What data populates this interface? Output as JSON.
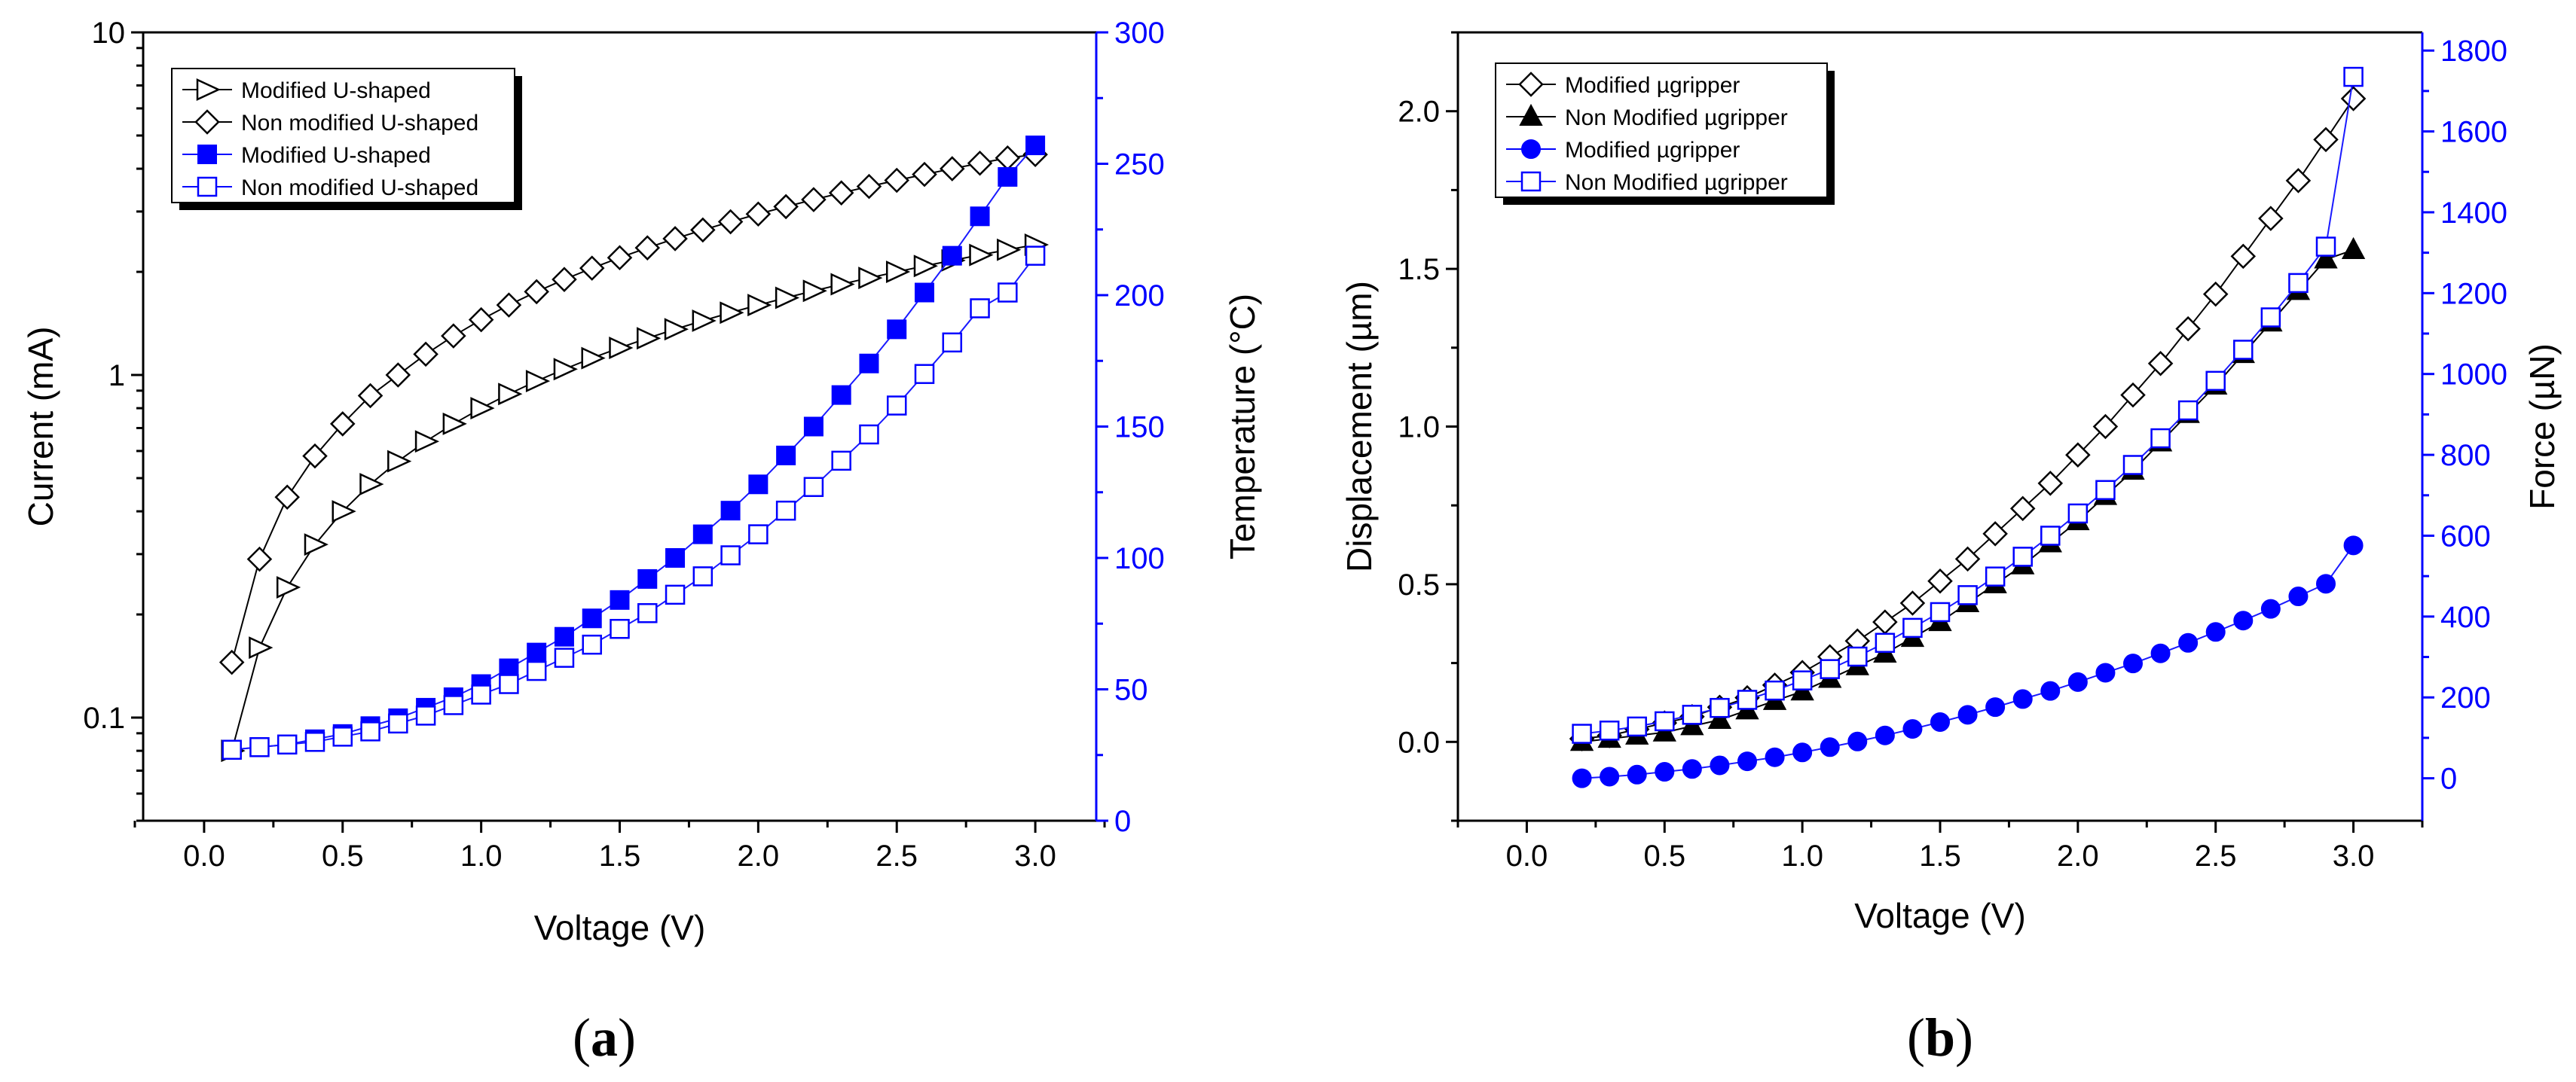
{
  "colors": {
    "black": "#000000",
    "blue": "#0000ff",
    "blue_line": "#1a1aff"
  },
  "chart_data": [
    {
      "panel": "(a)",
      "panel_label": {
        "pre": "(",
        "letter": "a",
        "post": ")"
      },
      "type": "line",
      "xlabel": "Voltage (V)",
      "ylabel": "Current (mA)",
      "y2label": "Temperature (°C)",
      "xlim": [
        -0.22,
        3.22
      ],
      "ylim_log": [
        0.05,
        10
      ],
      "y2lim": [
        0,
        300
      ],
      "x_ticks": [
        "0.0",
        "0.5",
        "1.0",
        "1.5",
        "2.0",
        "2.5",
        "3.0"
      ],
      "y_ticks": [
        "0.1",
        "1",
        "10"
      ],
      "y2_ticks": [
        "0",
        "50",
        "100",
        "150",
        "200",
        "250",
        "300"
      ],
      "legend_position": "top-left",
      "series": [
        {
          "name": "Modified U-shaped",
          "axis": "left",
          "marker": "triangle-right-open",
          "color": "black",
          "x": [
            0.1,
            0.2,
            0.3,
            0.4,
            0.5,
            0.6,
            0.7,
            0.8,
            0.9,
            1.0,
            1.1,
            1.2,
            1.3,
            1.4,
            1.5,
            1.6,
            1.7,
            1.8,
            1.9,
            2.0,
            2.1,
            2.2,
            2.3,
            2.4,
            2.5,
            2.6,
            2.7,
            2.8,
            2.9,
            3.0
          ],
          "values": [
            0.08,
            0.16,
            0.24,
            0.32,
            0.4,
            0.48,
            0.56,
            0.64,
            0.72,
            0.8,
            0.88,
            0.96,
            1.04,
            1.12,
            1.2,
            1.28,
            1.36,
            1.44,
            1.52,
            1.6,
            1.68,
            1.76,
            1.84,
            1.92,
            2.0,
            2.08,
            2.16,
            2.24,
            2.32,
            2.4
          ]
        },
        {
          "name": "Non modified U-shaped",
          "axis": "left",
          "marker": "diamond-open",
          "color": "black",
          "x": [
            0.1,
            0.2,
            0.3,
            0.4,
            0.5,
            0.6,
            0.7,
            0.8,
            0.9,
            1.0,
            1.1,
            1.2,
            1.3,
            1.4,
            1.5,
            1.6,
            1.7,
            1.8,
            1.9,
            2.0,
            2.1,
            2.2,
            2.3,
            2.4,
            2.5,
            2.6,
            2.7,
            2.8,
            2.9,
            3.0
          ],
          "values": [
            0.145,
            0.29,
            0.44,
            0.58,
            0.72,
            0.87,
            1.0,
            1.15,
            1.3,
            1.45,
            1.6,
            1.75,
            1.9,
            2.05,
            2.2,
            2.35,
            2.5,
            2.65,
            2.8,
            2.95,
            3.1,
            3.25,
            3.4,
            3.55,
            3.7,
            3.85,
            4.0,
            4.15,
            4.3,
            4.4
          ]
        },
        {
          "name": "Modified U-shaped",
          "axis": "right",
          "marker": "square-filled",
          "color": "blue",
          "x": [
            0.1,
            0.2,
            0.3,
            0.4,
            0.5,
            0.6,
            0.7,
            0.8,
            0.9,
            1.0,
            1.1,
            1.2,
            1.3,
            1.4,
            1.5,
            1.6,
            1.7,
            1.8,
            1.9,
            2.0,
            2.1,
            2.2,
            2.3,
            2.4,
            2.5,
            2.6,
            2.7,
            2.8,
            2.9,
            3.0
          ],
          "values": [
            27,
            28,
            29,
            31,
            33,
            36,
            39,
            43,
            47,
            52,
            58,
            64,
            70,
            77,
            84,
            92,
            100,
            109,
            118,
            128,
            139,
            150,
            162,
            174,
            187,
            201,
            215,
            230,
            245,
            257
          ]
        },
        {
          "name": "Non modified U-shaped",
          "axis": "right",
          "marker": "square-open",
          "color": "blue",
          "x": [
            0.1,
            0.2,
            0.3,
            0.4,
            0.5,
            0.6,
            0.7,
            0.8,
            0.9,
            1.0,
            1.1,
            1.2,
            1.3,
            1.4,
            1.5,
            1.6,
            1.7,
            1.8,
            1.9,
            2.0,
            2.1,
            2.2,
            2.3,
            2.4,
            2.5,
            2.6,
            2.7,
            2.8,
            2.9,
            3.0
          ],
          "values": [
            27,
            28,
            29,
            30,
            32,
            34,
            37,
            40,
            44,
            48,
            52,
            57,
            62,
            67,
            73,
            79,
            86,
            93,
            101,
            109,
            118,
            127,
            137,
            147,
            158,
            170,
            182,
            195,
            201,
            215
          ]
        }
      ]
    },
    {
      "panel": "(b)",
      "panel_label": {
        "pre": "(",
        "letter": "b",
        "post": ")"
      },
      "type": "line",
      "xlabel": "Voltage (V)",
      "ylabel": "Displacement (µm)",
      "y2label": "Force (µN)",
      "xlim": [
        -0.25,
        3.25
      ],
      "ylim": [
        -0.25,
        2.25
      ],
      "y2lim": [
        -105,
        1845
      ],
      "x_ticks": [
        "0.0",
        "0.5",
        "1.0",
        "1.5",
        "2.0",
        "2.5",
        "3.0"
      ],
      "y_ticks": [
        "0.0",
        "0.5",
        "1.0",
        "1.5",
        "2.0"
      ],
      "y2_ticks": [
        "0",
        "200",
        "400",
        "600",
        "800",
        "1000",
        "1200",
        "1400",
        "1600",
        "1800"
      ],
      "legend_position": "top-left",
      "series": [
        {
          "name": "Modified µgripper",
          "axis": "left",
          "marker": "diamond-open",
          "color": "black",
          "x": [
            0.2,
            0.3,
            0.4,
            0.5,
            0.6,
            0.7,
            0.8,
            0.9,
            1.0,
            1.1,
            1.2,
            1.3,
            1.4,
            1.5,
            1.6,
            1.7,
            1.8,
            1.9,
            2.0,
            2.1,
            2.2,
            2.3,
            2.4,
            2.5,
            2.6,
            2.7,
            2.8,
            2.9,
            3.0
          ],
          "values": [
            0.01,
            0.02,
            0.04,
            0.06,
            0.08,
            0.11,
            0.14,
            0.18,
            0.22,
            0.27,
            0.32,
            0.38,
            0.44,
            0.51,
            0.58,
            0.66,
            0.74,
            0.82,
            0.91,
            1.0,
            1.1,
            1.2,
            1.31,
            1.42,
            1.54,
            1.66,
            1.78,
            1.91,
            2.04
          ]
        },
        {
          "name": "Non Modified µgripper",
          "axis": "left",
          "marker": "triangle-up-filled",
          "color": "black",
          "x": [
            0.2,
            0.3,
            0.4,
            0.5,
            0.6,
            0.7,
            0.8,
            0.9,
            1.0,
            1.1,
            1.2,
            1.3,
            1.4,
            1.5,
            1.6,
            1.7,
            1.8,
            1.9,
            2.0,
            2.1,
            2.2,
            2.3,
            2.4,
            2.5,
            2.6,
            2.7,
            2.8,
            2.9,
            3.0
          ],
          "values": [
            0.0,
            0.01,
            0.02,
            0.03,
            0.05,
            0.07,
            0.1,
            0.13,
            0.16,
            0.2,
            0.24,
            0.28,
            0.33,
            0.38,
            0.44,
            0.5,
            0.56,
            0.63,
            0.7,
            0.78,
            0.86,
            0.95,
            1.04,
            1.13,
            1.23,
            1.33,
            1.43,
            1.53,
            1.56
          ]
        },
        {
          "name": "Modified µgripper",
          "axis": "right",
          "marker": "circle-filled",
          "color": "blue",
          "x": [
            0.2,
            0.3,
            0.4,
            0.5,
            0.6,
            0.7,
            0.8,
            0.9,
            1.0,
            1.1,
            1.2,
            1.3,
            1.4,
            1.5,
            1.6,
            1.7,
            1.8,
            1.9,
            2.0,
            2.1,
            2.2,
            2.3,
            2.4,
            2.5,
            2.6,
            2.7,
            2.8,
            2.9,
            3.0
          ],
          "values": [
            0,
            4,
            9,
            16,
            23,
            32,
            42,
            52,
            64,
            77,
            91,
            106,
            122,
            139,
            157,
            176,
            196,
            216,
            238,
            261,
            284,
            309,
            335,
            362,
            390,
            419,
            450,
            481,
            576
          ]
        },
        {
          "name": "Non Modified µgripper",
          "axis": "right",
          "marker": "square-open",
          "color": "blue",
          "x": [
            0.2,
            0.3,
            0.4,
            0.5,
            0.6,
            0.7,
            0.8,
            0.9,
            1.0,
            1.1,
            1.2,
            1.3,
            1.4,
            1.5,
            1.6,
            1.7,
            1.8,
            1.9,
            2.0,
            2.1,
            2.2,
            2.3,
            2.4,
            2.5,
            2.6,
            2.7,
            2.8,
            2.9,
            3.0
          ],
          "values": [
            110,
            118,
            128,
            141,
            157,
            174,
            194,
            217,
            242,
            270,
            301,
            335,
            372,
            411,
            453,
            499,
            548,
            600,
            655,
            713,
            775,
            841,
            910,
            983,
            1060,
            1140,
            1225,
            1315,
            1735
          ]
        }
      ]
    }
  ]
}
